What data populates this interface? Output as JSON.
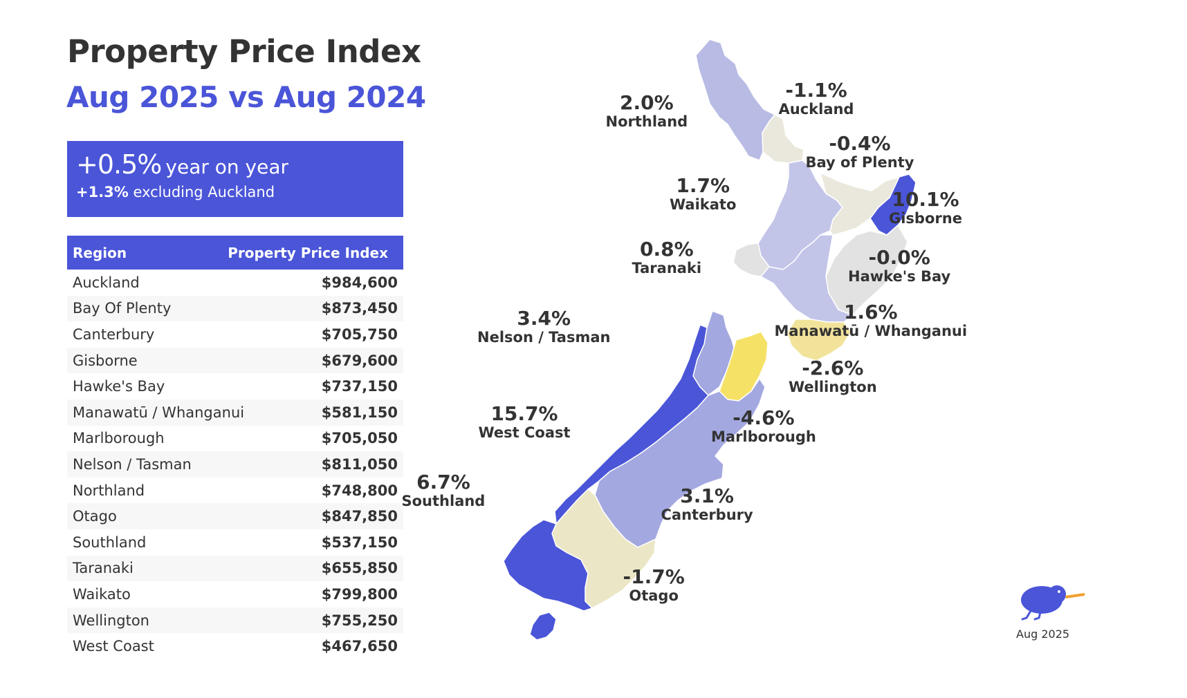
{
  "title": "Property Price Index",
  "subtitle": "Aug 2025 vs Aug 2024",
  "summary": {
    "headline_value": "+0.5%",
    "headline_text": "year on year",
    "secondary_value": "+1.3%",
    "secondary_text": "excluding Auckland"
  },
  "table": {
    "headers": [
      "Region",
      "Property Price Index"
    ],
    "rows": [
      {
        "region": "Auckland",
        "value": "$984,600"
      },
      {
        "region": "Bay Of Plenty",
        "value": "$873,450"
      },
      {
        "region": "Canterbury",
        "value": "$705,750"
      },
      {
        "region": "Gisborne",
        "value": "$679,600"
      },
      {
        "region": "Hawke's Bay",
        "value": "$737,150"
      },
      {
        "region": "Manawatū / Whanganui",
        "value": "$581,150"
      },
      {
        "region": "Marlborough",
        "value": "$705,050"
      },
      {
        "region": "Nelson / Tasman",
        "value": "$811,050"
      },
      {
        "region": "Northland",
        "value": "$748,800"
      },
      {
        "region": "Otago",
        "value": "$847,850"
      },
      {
        "region": "Southland",
        "value": "$537,150"
      },
      {
        "region": "Taranaki",
        "value": "$655,850"
      },
      {
        "region": "Waikato",
        "value": "$799,800"
      },
      {
        "region": "Wellington",
        "value": "$755,250"
      },
      {
        "region": "West Coast",
        "value": "$467,650"
      }
    ]
  },
  "map_labels": {
    "northland": {
      "pct": "2.0%",
      "name": "Northland"
    },
    "auckland": {
      "pct": "-1.1%",
      "name": "Auckland"
    },
    "bay_of_plenty": {
      "pct": "-0.4%",
      "name": "Bay of Plenty"
    },
    "waikato": {
      "pct": "1.7%",
      "name": "Waikato"
    },
    "gisborne": {
      "pct": "10.1%",
      "name": "Gisborne"
    },
    "taranaki": {
      "pct": "0.8%",
      "name": "Taranaki"
    },
    "hawkes_bay": {
      "pct": "-0.0%",
      "name": "Hawke's Bay"
    },
    "nelson_tasman": {
      "pct": "3.4%",
      "name": "Nelson / Tasman"
    },
    "manawatu": {
      "pct": "1.6%",
      "name": "Manawatū / Whanganui"
    },
    "wellington": {
      "pct": "-2.6%",
      "name": "Wellington"
    },
    "west_coast": {
      "pct": "15.7%",
      "name": "West Coast"
    },
    "marlborough": {
      "pct": "-4.6%",
      "name": "Marlborough"
    },
    "southland": {
      "pct": "6.7%",
      "name": "Southland"
    },
    "canterbury": {
      "pct": "3.1%",
      "name": "Canterbury"
    },
    "otago": {
      "pct": "-1.7%",
      "name": "Otago"
    }
  },
  "colors": {
    "accent": "#4a55d8",
    "strong_blue": "#4a55d8",
    "light_blue": "#a3a8e0",
    "lighter_blue": "#c2c5e8",
    "pale_blue": "#b8bbe3",
    "grey": "#e2e2e2",
    "beige": "#ebe7c6",
    "light_beige": "#eae8dc",
    "yellow": "#f5e165",
    "pale_yellow": "#f1e39a"
  },
  "brand": {
    "icon": "kiwi-bird-icon",
    "date_label": "Aug 2025"
  }
}
